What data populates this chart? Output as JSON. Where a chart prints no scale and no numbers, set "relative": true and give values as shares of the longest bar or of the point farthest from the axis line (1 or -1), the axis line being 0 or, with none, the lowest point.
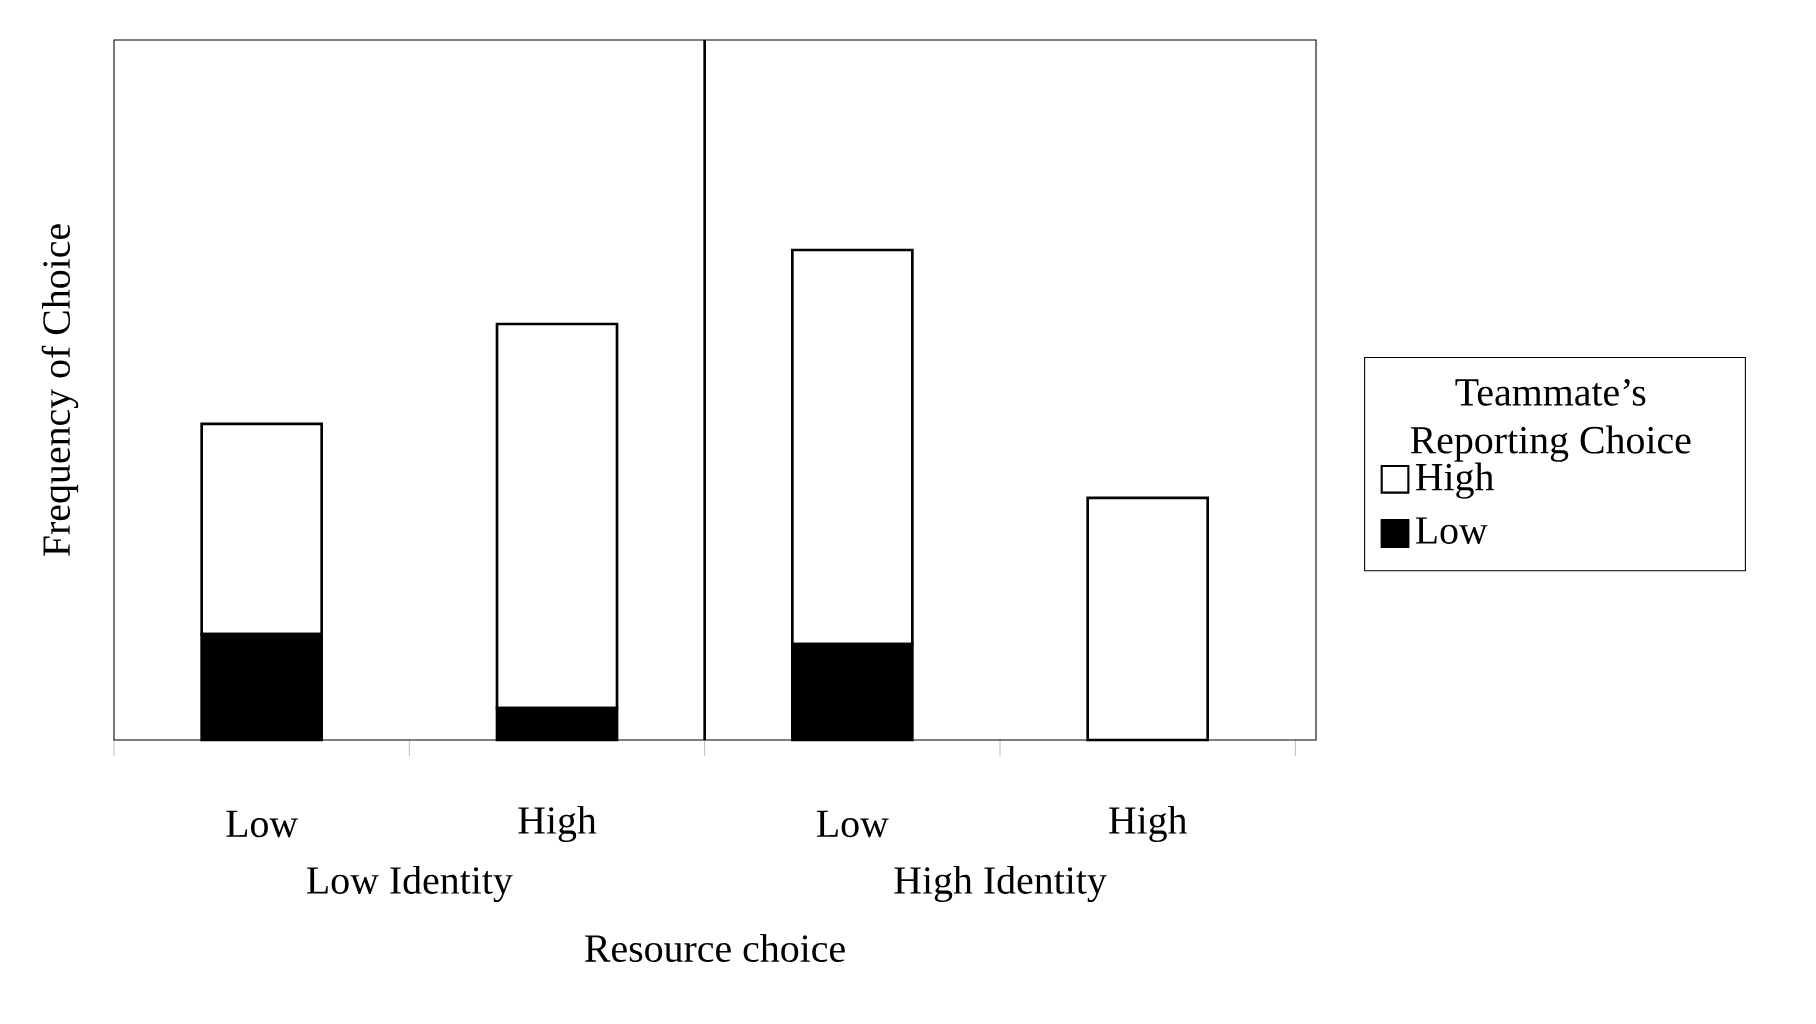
{
  "chart_data": {
    "type": "bar",
    "stacked": true,
    "relative": true,
    "categories": [
      "Low",
      "High",
      "Low",
      "High"
    ],
    "xlabel": "Resource choice",
    "ylabel": "Frequency of Choice",
    "legend_title": "Teammate’s Reporting Choice",
    "legend": "right",
    "annotations": [
      "Low Identity",
      "High Identity"
    ],
    "series": [
      {
        "name": "Low",
        "color": "#000000",
        "values": [
          0.216,
          0.065,
          0.196,
          0
        ]
      },
      {
        "name": "High",
        "color": "#ffffff",
        "values": [
          0.429,
          0.784,
          0.804,
          0.494
        ]
      }
    ]
  }
}
